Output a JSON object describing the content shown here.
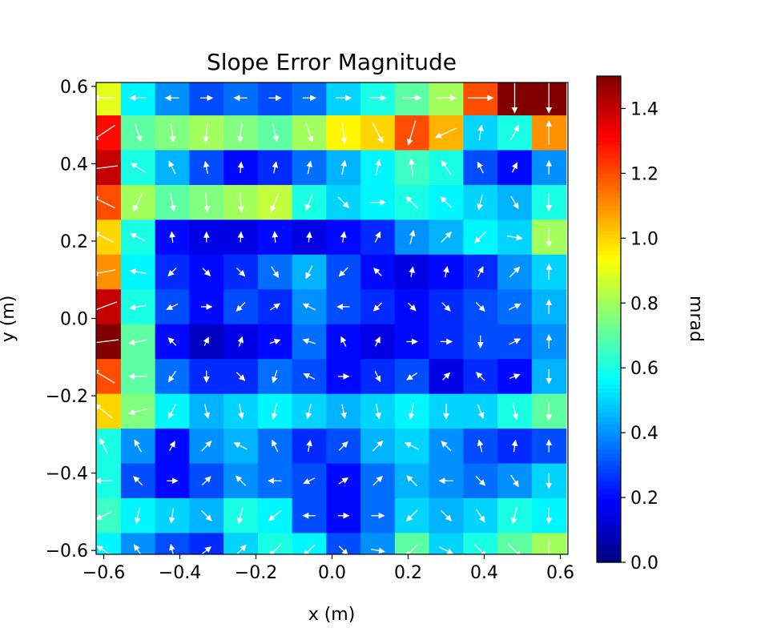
{
  "chart_data": {
    "type": "heatmap",
    "title": "Slope Error Magnitude",
    "xlabel": "x (m)",
    "ylabel": "y (m)",
    "xlim": [
      -0.62,
      0.62
    ],
    "ylim": [
      -0.61,
      0.61
    ],
    "x_ticks": [
      -0.6,
      -0.4,
      -0.2,
      0.0,
      0.2,
      0.4,
      0.6
    ],
    "x_tick_labels": [
      "−0.6",
      "−0.4",
      "−0.2",
      "0.0",
      "0.2",
      "0.4",
      "0.6"
    ],
    "y_ticks": [
      0.6,
      0.4,
      0.2,
      0.0,
      -0.2,
      -0.4,
      -0.6
    ],
    "y_tick_labels": [
      "0.6",
      "0.4",
      "0.2",
      "0.0",
      "−0.2",
      "−0.4",
      "−0.6"
    ],
    "colorbar": {
      "label": "mrad",
      "colormap": "jet",
      "range": [
        0.0,
        1.5
      ],
      "ticks": [
        0.0,
        0.2,
        0.4,
        0.6,
        0.8,
        1.0,
        1.2,
        1.4
      ],
      "tick_labels": [
        "0.0",
        "0.2",
        "0.4",
        "0.6",
        "0.8",
        "1.0",
        "1.2",
        "1.4"
      ]
    },
    "grid": false,
    "quiver": {
      "color": "#ffffff",
      "x_step": 0.09,
      "y_step": 0.09
    },
    "y_grid": [
      0.57,
      0.48,
      0.39,
      0.3,
      0.21,
      0.12,
      0.03,
      -0.06,
      -0.15,
      -0.24,
      -0.33,
      -0.42,
      -0.51,
      -0.6
    ],
    "x_grid": [
      -0.6,
      -0.51,
      -0.42,
      -0.33,
      -0.24,
      -0.15,
      -0.06,
      0.03,
      0.12,
      0.21,
      0.3,
      0.39,
      0.48,
      0.57
    ],
    "z_mrad": [
      [
        0.9,
        0.55,
        0.4,
        0.3,
        0.35,
        0.3,
        0.35,
        0.5,
        0.6,
        0.7,
        0.8,
        1.2,
        1.5,
        1.5
      ],
      [
        1.3,
        0.7,
        0.75,
        0.8,
        0.75,
        0.7,
        0.8,
        0.95,
        1.0,
        1.2,
        1.05,
        0.5,
        0.6,
        1.1
      ],
      [
        1.4,
        0.6,
        0.45,
        0.3,
        0.2,
        0.25,
        0.35,
        0.45,
        0.55,
        0.65,
        0.6,
        0.3,
        0.2,
        0.4
      ],
      [
        1.2,
        0.8,
        0.7,
        0.75,
        0.8,
        0.85,
        0.6,
        0.5,
        0.55,
        0.6,
        0.55,
        0.5,
        0.45,
        0.6
      ],
      [
        1.0,
        0.6,
        0.2,
        0.15,
        0.15,
        0.2,
        0.15,
        0.2,
        0.25,
        0.4,
        0.45,
        0.55,
        0.5,
        0.8
      ],
      [
        1.1,
        0.55,
        0.25,
        0.2,
        0.25,
        0.35,
        0.45,
        0.3,
        0.2,
        0.15,
        0.2,
        0.25,
        0.4,
        0.5
      ],
      [
        1.4,
        0.6,
        0.3,
        0.2,
        0.3,
        0.25,
        0.4,
        0.3,
        0.25,
        0.2,
        0.25,
        0.3,
        0.35,
        0.45
      ],
      [
        1.5,
        0.7,
        0.2,
        0.1,
        0.15,
        0.2,
        0.35,
        0.2,
        0.15,
        0.2,
        0.25,
        0.3,
        0.3,
        0.4
      ],
      [
        1.2,
        0.7,
        0.35,
        0.25,
        0.25,
        0.35,
        0.3,
        0.2,
        0.25,
        0.3,
        0.15,
        0.25,
        0.2,
        0.45
      ],
      [
        1.0,
        0.75,
        0.55,
        0.45,
        0.5,
        0.55,
        0.5,
        0.45,
        0.5,
        0.55,
        0.5,
        0.5,
        0.6,
        0.7
      ],
      [
        0.6,
        0.4,
        0.2,
        0.4,
        0.45,
        0.35,
        0.25,
        0.3,
        0.45,
        0.5,
        0.4,
        0.3,
        0.25,
        0.3
      ],
      [
        0.6,
        0.3,
        0.2,
        0.3,
        0.4,
        0.35,
        0.3,
        0.2,
        0.35,
        0.45,
        0.4,
        0.35,
        0.4,
        0.5
      ],
      [
        0.65,
        0.55,
        0.5,
        0.45,
        0.6,
        0.55,
        0.3,
        0.2,
        0.35,
        0.5,
        0.45,
        0.5,
        0.6,
        0.55
      ],
      [
        0.55,
        0.4,
        0.3,
        0.25,
        0.5,
        0.6,
        0.55,
        0.3,
        0.4,
        0.7,
        0.5,
        0.6,
        0.7,
        0.8
      ]
    ]
  }
}
